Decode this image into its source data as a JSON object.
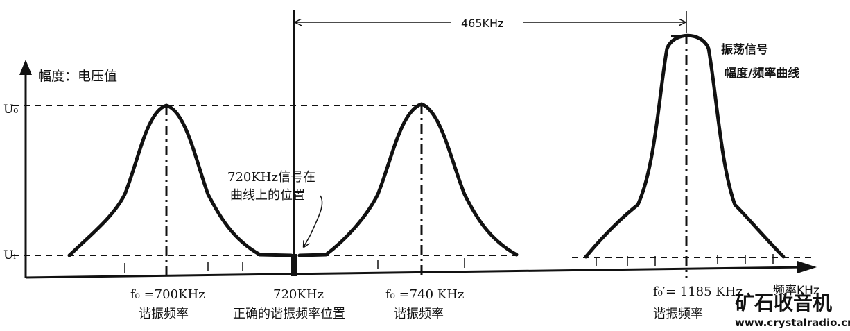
{
  "axes": {
    "y_label": "幅度：电压值",
    "x_label": "频率KHz",
    "u0": "U₀",
    "ui": "Uᵢ"
  },
  "span": {
    "label": "465KHz"
  },
  "curves": [
    {
      "freq_label": "f₀ =700KHz",
      "caption": "谐振频率"
    },
    {
      "freq_label": "720KHz",
      "caption": "正确的谐振频率位置"
    },
    {
      "freq_label": "f₀ =740 KHz",
      "caption": "谐振频率"
    },
    {
      "freq_label": "f₀′= 1185 KHz",
      "caption": "谐振频率"
    }
  ],
  "annotation": {
    "line1": "720KHz信号在",
    "line2": "曲线上的位置"
  },
  "osc": {
    "line1": "振荡信号",
    "line2": "幅度/频率曲线"
  },
  "watermark": {
    "title": "矿石收音机",
    "url": "www.crystalradio.cn",
    "title_color": "#1a56b5",
    "url_color": "#1a3f8c"
  }
}
